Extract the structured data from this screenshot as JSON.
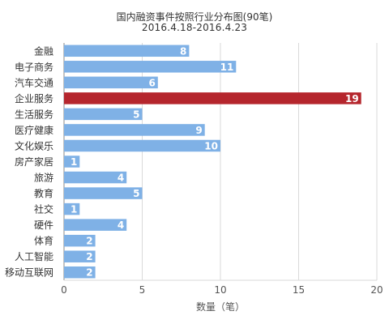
{
  "chart_data": {
    "type": "bar",
    "orientation": "horizontal",
    "title": "国内融资事件按照行业分布图(90笔)",
    "subtitle": "2016.4.18-2016.4.23",
    "xlabel": "数量（笔）",
    "ylabel": "",
    "xlim": [
      0,
      20
    ],
    "xticks": [
      0,
      5,
      10,
      15,
      20
    ],
    "grid": true,
    "legend": "none",
    "categories": [
      "金融",
      "电子商务",
      "汽车交通",
      "企业服务",
      "生活服务",
      "医疗健康",
      "文化娱乐",
      "房产家居",
      "旅游",
      "教育",
      "社交",
      "硬件",
      "体育",
      "人工智能",
      "移动互联网"
    ],
    "values": [
      8,
      11,
      6,
      19,
      5,
      9,
      10,
      1,
      4,
      5,
      1,
      4,
      2,
      2,
      2
    ],
    "highlight_index": 3,
    "colors": {
      "bar": "#7fb1e6",
      "highlight": "#b5262d",
      "label": "#ffffff",
      "grid": "#d9d9d9",
      "axis": "#888888"
    }
  }
}
